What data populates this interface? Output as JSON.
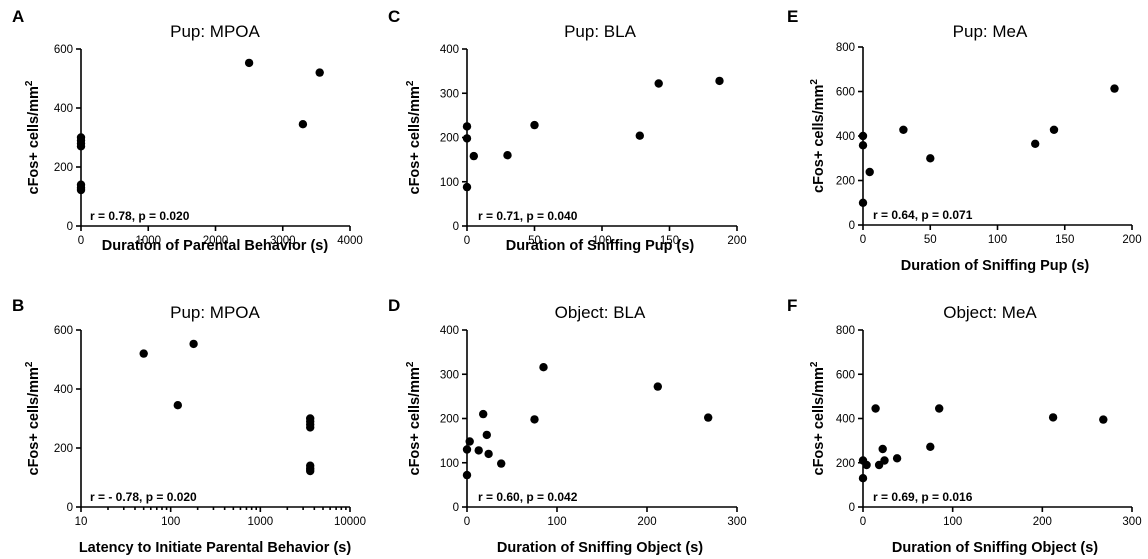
{
  "chart_data": [
    {
      "panel": "A",
      "type": "scatter",
      "title": "Pup: MPOA",
      "xlabel": "Duration of Parental Behavior (s)",
      "ylabel": "cFos+ cells/mm",
      "ylabel_sup": "2",
      "xscale": "linear",
      "xlim": [
        0,
        4000
      ],
      "ylim": [
        0,
        600
      ],
      "xticks": [
        "0",
        "1000",
        "2000",
        "3000",
        "4000"
      ],
      "yticks": [
        "0",
        "200",
        "400",
        "600"
      ],
      "stat": "r = 0.78, p = 0.020",
      "points": [
        [
          0,
          300
        ],
        [
          0,
          290
        ],
        [
          0,
          280
        ],
        [
          0,
          270
        ],
        [
          0,
          140
        ],
        [
          0,
          130
        ],
        [
          0,
          122
        ],
        [
          2500,
          553
        ],
        [
          3300,
          345
        ],
        [
          3550,
          520
        ]
      ]
    },
    {
      "panel": "B",
      "type": "scatter",
      "title": "Pup: MPOA",
      "xlabel": "Latency to Initiate Parental Behavior (s)",
      "ylabel": "cFos+ cells/mm",
      "ylabel_sup": "2",
      "xscale": "log",
      "xlim": [
        10,
        10000
      ],
      "ylim": [
        0,
        600
      ],
      "xticks": [
        "10",
        "100",
        "1000",
        "10000"
      ],
      "yticks": [
        "0",
        "200",
        "400",
        "600"
      ],
      "stat": "r = - 0.78, p = 0.020",
      "points": [
        [
          50,
          520
        ],
        [
          120,
          345
        ],
        [
          180,
          553
        ],
        [
          3600,
          300
        ],
        [
          3600,
          290
        ],
        [
          3600,
          280
        ],
        [
          3600,
          270
        ],
        [
          3600,
          140
        ],
        [
          3600,
          130
        ],
        [
          3600,
          122
        ]
      ]
    },
    {
      "panel": "C",
      "type": "scatter",
      "title": "Pup: BLA",
      "xlabel": "Duration of Sniffing Pup (s)",
      "ylabel": "cFos+ cells/mm",
      "ylabel_sup": "2",
      "xscale": "linear",
      "xlim": [
        0,
        200
      ],
      "ylim": [
        0,
        400
      ],
      "xticks": [
        "0",
        "50",
        "100",
        "150",
        "200"
      ],
      "yticks": [
        "0",
        "100",
        "200",
        "300",
        "400"
      ],
      "stat": "r = 0.71, p = 0.040",
      "points": [
        [
          0,
          225
        ],
        [
          0,
          198
        ],
        [
          0,
          88
        ],
        [
          5,
          158
        ],
        [
          30,
          160
        ],
        [
          50,
          228
        ],
        [
          128,
          204
        ],
        [
          142,
          322
        ],
        [
          187,
          328
        ]
      ]
    },
    {
      "panel": "D",
      "type": "scatter",
      "title": "Object: BLA",
      "xlabel": "Duration of Sniffing Object (s)",
      "ylabel": "cFos+ cells/mm",
      "ylabel_sup": "2",
      "xscale": "linear",
      "xlim": [
        0,
        300
      ],
      "ylim": [
        0,
        400
      ],
      "xticks": [
        "0",
        "100",
        "200",
        "300"
      ],
      "yticks": [
        "0",
        "100",
        "200",
        "300",
        "400"
      ],
      "stat": "r = 0.60, p = 0.042",
      "points": [
        [
          0,
          130
        ],
        [
          0,
          72
        ],
        [
          3,
          148
        ],
        [
          13,
          128
        ],
        [
          18,
          210
        ],
        [
          22,
          163
        ],
        [
          24,
          120
        ],
        [
          38,
          98
        ],
        [
          75,
          198
        ],
        [
          85,
          316
        ],
        [
          212,
          272
        ],
        [
          268,
          202
        ]
      ]
    },
    {
      "panel": "E",
      "type": "scatter",
      "title": "Pup: MeA",
      "xlabel": "Duration of Sniffing Pup (s)",
      "ylabel": "cFos+ cells/mm",
      "ylabel_sup": "2",
      "xscale": "linear",
      "xlim": [
        0,
        200
      ],
      "ylim": [
        0,
        800
      ],
      "xticks": [
        "0",
        "50",
        "100",
        "150",
        "200"
      ],
      "yticks": [
        "0",
        "200",
        "400",
        "600",
        "800"
      ],
      "stat": "r = 0.64, p = 0.071",
      "points": [
        [
          0,
          400
        ],
        [
          0,
          358
        ],
        [
          0,
          100
        ],
        [
          5,
          238
        ],
        [
          30,
          428
        ],
        [
          50,
          300
        ],
        [
          128,
          365
        ],
        [
          142,
          428
        ],
        [
          187,
          613
        ]
      ]
    },
    {
      "panel": "F",
      "type": "scatter",
      "title": "Object: MeA",
      "xlabel": "Duration of Sniffing Object (s)",
      "ylabel": "cFos+ cells/mm",
      "ylabel_sup": "2",
      "xscale": "linear",
      "xlim": [
        0,
        300
      ],
      "ylim": [
        0,
        800
      ],
      "xticks": [
        "0",
        "100",
        "200",
        "300"
      ],
      "yticks": [
        "0",
        "200",
        "400",
        "600",
        "800"
      ],
      "stat": "r = 0.69, p = 0.016",
      "points": [
        [
          0,
          210
        ],
        [
          0,
          130
        ],
        [
          4,
          190
        ],
        [
          14,
          445
        ],
        [
          18,
          190
        ],
        [
          22,
          262
        ],
        [
          24,
          210
        ],
        [
          38,
          220
        ],
        [
          75,
          272
        ],
        [
          85,
          445
        ],
        [
          212,
          405
        ],
        [
          268,
          395
        ]
      ]
    }
  ]
}
